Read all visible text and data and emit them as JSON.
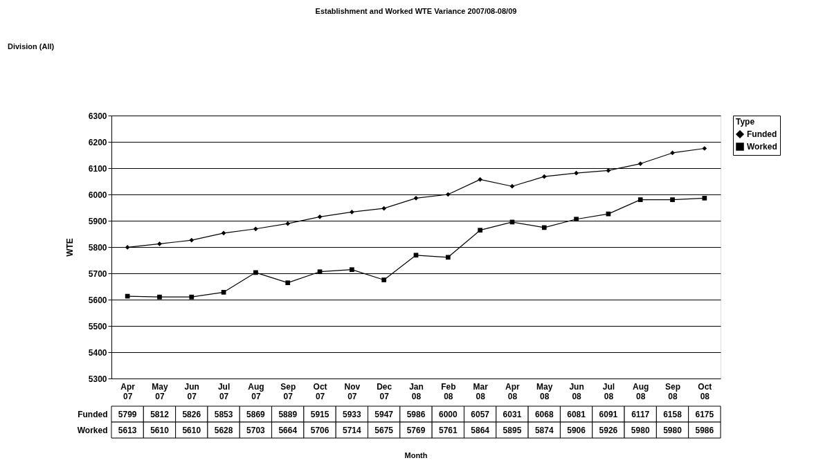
{
  "chart_data": {
    "type": "line",
    "title": "Establishment and Worked WTE  Variance 2007/08-08/09",
    "ylabel": "WTE",
    "legend_title": "Type",
    "annotations": [
      "Division (All)",
      "Month"
    ],
    "categories": [
      "Apr 07",
      "May 07",
      "Jun 07",
      "Jul 07",
      "Aug 07",
      "Sep 07",
      "Oct 07",
      "Nov 07",
      "Dec 07",
      "Jan 08",
      "Feb 08",
      "Mar 08",
      "Apr 08",
      "May 08",
      "Jun 08",
      "Jul 08",
      "Aug 08",
      "Sep 08",
      "Oct 08"
    ],
    "series": [
      {
        "name": "Funded",
        "color": "#000000",
        "marker": "diamond",
        "values": [
          5799,
          5812,
          5826,
          5853,
          5869,
          5889,
          5915,
          5933,
          5947,
          5986,
          6000,
          6057,
          6031,
          6068,
          6081,
          6091,
          6117,
          6158,
          6175
        ]
      },
      {
        "name": "Worked",
        "color": "#000000",
        "marker": "square",
        "values": [
          5613,
          5610,
          5610,
          5628,
          5703,
          5664,
          5706,
          5714,
          5675,
          5769,
          5761,
          5864,
          5895,
          5874,
          5906,
          5926,
          5980,
          5980,
          5986
        ]
      }
    ],
    "ylim": [
      5300,
      6300
    ],
    "yticks": [
      5300,
      5400,
      5500,
      5600,
      5700,
      5800,
      5900,
      6000,
      6100,
      6200,
      6300
    ],
    "grid": "y",
    "legend": "right",
    "data_labels": true,
    "line_style": "solid"
  }
}
